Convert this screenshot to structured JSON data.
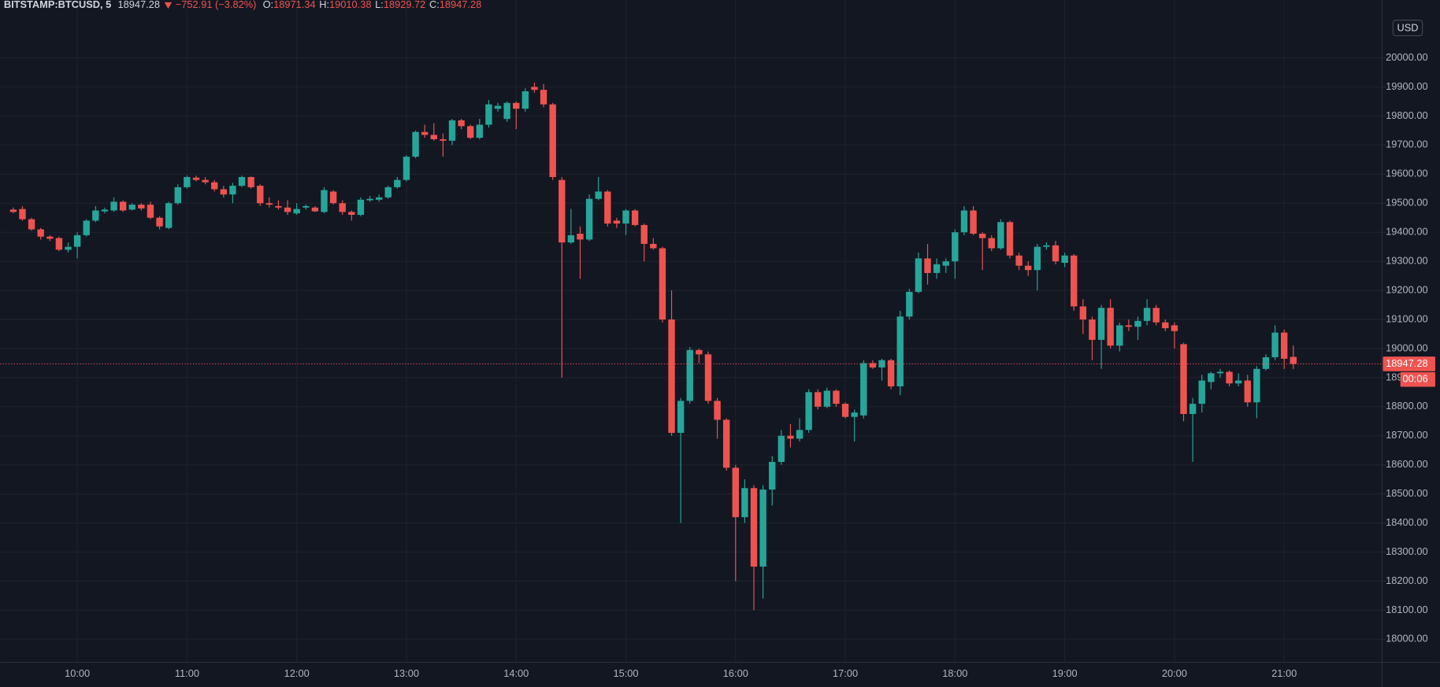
{
  "chart_data": {
    "type": "candlestick",
    "title": "BITSTAMP:BTCUSD, 5",
    "last_price": 18947.28,
    "change": "−752.91 (−3.82%)",
    "ohlc_legend": [
      {
        "label": "O:",
        "value": 18971.34
      },
      {
        "label": "H:",
        "value": 19010.38
      },
      {
        "label": "L:",
        "value": 18929.72
      },
      {
        "label": "C:",
        "value": 18947.28
      }
    ],
    "currency": "USD",
    "countdown": "00:06",
    "up_color": "#26a69a",
    "down_color": "#ef5350",
    "grid": true,
    "x": [
      "09:25",
      "09:30",
      "09:35",
      "09:40",
      "09:45",
      "09:50",
      "09:55",
      "10:00",
      "10:05",
      "10:10",
      "10:15",
      "10:20",
      "10:25",
      "10:30",
      "10:35",
      "10:40",
      "10:45",
      "10:50",
      "10:55",
      "11:00",
      "11:05",
      "11:10",
      "11:15",
      "11:20",
      "11:25",
      "11:30",
      "11:35",
      "11:40",
      "11:45",
      "11:50",
      "11:55",
      "12:00",
      "12:05",
      "12:10",
      "12:15",
      "12:20",
      "12:25",
      "12:30",
      "12:35",
      "12:40",
      "12:45",
      "12:50",
      "12:55",
      "13:00",
      "13:05",
      "13:10",
      "13:15",
      "13:20",
      "13:25",
      "13:30",
      "13:35",
      "13:40",
      "13:45",
      "13:50",
      "13:55",
      "14:00",
      "14:05",
      "14:10",
      "14:15",
      "14:20",
      "14:25",
      "14:30",
      "14:35",
      "14:40",
      "14:45",
      "14:50",
      "14:55",
      "15:00",
      "15:05",
      "15:10",
      "15:15",
      "15:20",
      "15:25",
      "15:30",
      "15:35",
      "15:40",
      "15:45",
      "15:50",
      "15:55",
      "16:00",
      "16:05",
      "16:10",
      "16:15",
      "16:20",
      "16:25",
      "16:30",
      "16:35",
      "16:40",
      "16:45",
      "16:50",
      "16:55",
      "17:00",
      "17:05",
      "17:10",
      "17:15",
      "17:20",
      "17:25",
      "17:30",
      "17:35",
      "17:40",
      "17:45",
      "17:50",
      "17:55",
      "18:00",
      "18:05",
      "18:10",
      "18:15",
      "18:20",
      "18:25",
      "18:30",
      "18:35",
      "18:40",
      "18:45",
      "18:50",
      "18:55",
      "19:00",
      "19:05",
      "19:10",
      "19:15",
      "19:20",
      "19:25",
      "19:30",
      "19:35",
      "19:40",
      "19:45",
      "19:50",
      "19:55",
      "20:00",
      "20:05",
      "20:10",
      "20:15",
      "20:20",
      "20:25",
      "20:30",
      "20:35",
      "20:40",
      "20:45",
      "20:50",
      "20:55",
      "21:00",
      "21:05"
    ],
    "open": [
      19478,
      19480,
      19445,
      19410,
      19385,
      19380,
      19340,
      19350,
      19390,
      19440,
      19472,
      19475,
      19505,
      19478,
      19495,
      19495,
      19450,
      19415,
      19500,
      19555,
      19588,
      19580,
      19572,
      19548,
      19530,
      19560,
      19590,
      19560,
      19500,
      19490,
      19485,
      19465,
      19485,
      19485,
      19470,
      19540,
      19500,
      19470,
      19460,
      19510,
      19512,
      19520,
      19555,
      19580,
      19660,
      19745,
      19735,
      19720,
      19715,
      19785,
      19765,
      19725,
      19770,
      19825,
      19790,
      19845,
      19825,
      19900,
      19890,
      19840,
      19580,
      19365,
      19395,
      19375,
      19515,
      19540,
      19440,
      19430,
      19475,
      19425,
      19360,
      19345,
      19100,
      18710,
      18820,
      18995,
      18980,
      18820,
      18755,
      18590,
      18420,
      18520,
      18250,
      18515,
      18610,
      18700,
      18690,
      18720,
      18850,
      18800,
      18855,
      18810,
      18765,
      18770,
      18950,
      18935,
      18960,
      18870,
      19110,
      19195,
      19310,
      19260,
      19285,
      19300,
      19400,
      19475,
      19395,
      19380,
      19345,
      19435,
      19320,
      19285,
      19270,
      19350,
      19355,
      19295,
      19320,
      19145,
      19100,
      19030,
      19140,
      19010,
      19080,
      19075,
      19095,
      19140,
      19090,
      19080,
      19015,
      18775,
      18810,
      18885,
      18915,
      18920,
      18880,
      18890,
      18815,
      18930,
      18970,
      19055,
      18971.34
    ],
    "high": [
      19485,
      19490,
      19450,
      19415,
      19390,
      19385,
      19365,
      19400,
      19445,
      19490,
      19485,
      19520,
      19510,
      19500,
      19500,
      19505,
      19455,
      19505,
      19565,
      19595,
      19595,
      19590,
      19580,
      19560,
      19570,
      19595,
      19592,
      19565,
      19520,
      19510,
      19510,
      19500,
      19495,
      19490,
      19555,
      19545,
      19510,
      19475,
      19520,
      19525,
      19530,
      19560,
      19590,
      19665,
      19750,
      19770,
      19775,
      19740,
      19790,
      19790,
      19770,
      19790,
      19855,
      19845,
      19850,
      19850,
      19895,
      19915,
      19910,
      19845,
      19590,
      19480,
      19420,
      19530,
      19590,
      19545,
      19450,
      19480,
      19480,
      19430,
      19380,
      19350,
      19200,
      18830,
      19005,
      19000,
      18990,
      18830,
      18760,
      18600,
      18550,
      18530,
      18530,
      18630,
      18720,
      18740,
      18760,
      18860,
      18860,
      18865,
      18860,
      18815,
      18790,
      18960,
      18960,
      18965,
      18965,
      19130,
      19205,
      19330,
      19360,
      19310,
      19310,
      19410,
      19490,
      19490,
      19400,
      19390,
      19445,
      19440,
      19330,
      19300,
      19360,
      19365,
      19370,
      19330,
      19325,
      19170,
      19110,
      19150,
      19170,
      19090,
      19100,
      19110,
      19170,
      19150,
      19100,
      19090,
      19020,
      18830,
      18910,
      18920,
      18930,
      18925,
      18915,
      18910,
      18940,
      18980,
      19080,
      19065,
      19010.38
    ],
    "low": [
      19465,
      19440,
      19405,
      19375,
      19370,
      19335,
      19330,
      19310,
      19385,
      19435,
      19465,
      19470,
      19470,
      19475,
      19475,
      19445,
      19410,
      19410,
      19495,
      19550,
      19575,
      19565,
      19540,
      19520,
      19500,
      19555,
      19550,
      19490,
      19485,
      19478,
      19460,
      19460,
      19478,
      19470,
      19465,
      19495,
      19460,
      19440,
      19455,
      19505,
      19505,
      19515,
      19550,
      19575,
      19655,
      19725,
      19715,
      19660,
      19700,
      19755,
      19720,
      19720,
      19760,
      19815,
      19780,
      19755,
      19815,
      19880,
      19830,
      19580,
      18900,
      19360,
      19240,
      19370,
      19510,
      19420,
      19415,
      19390,
      19420,
      19300,
      19340,
      19090,
      18700,
      18400,
      18810,
      18950,
      18810,
      18690,
      18580,
      18200,
      18400,
      18100,
      18140,
      18460,
      18600,
      18660,
      18680,
      18710,
      18790,
      18795,
      18800,
      18760,
      18680,
      18760,
      18930,
      18890,
      18860,
      18840,
      19100,
      19190,
      19220,
      19240,
      19260,
      19240,
      19390,
      19390,
      19270,
      19335,
      19340,
      19310,
      19270,
      19250,
      19200,
      19340,
      19290,
      19280,
      19130,
      19050,
      18960,
      18930,
      19000,
      18990,
      19060,
      19030,
      19080,
      19080,
      19060,
      19000,
      18750,
      18610,
      18780,
      18860,
      18900,
      18870,
      18870,
      18800,
      18760,
      18925,
      18960,
      18930,
      18929.72
    ],
    "close": [
      19470,
      19445,
      19410,
      19385,
      19378,
      19340,
      19350,
      19390,
      19440,
      19475,
      19478,
      19505,
      19475,
      19495,
      19482,
      19450,
      19420,
      19500,
      19555,
      19590,
      19580,
      19572,
      19548,
      19530,
      19560,
      19590,
      19555,
      19500,
      19495,
      19485,
      19470,
      19480,
      19490,
      19472,
      19545,
      19500,
      19470,
      19460,
      19512,
      19515,
      19520,
      19555,
      19580,
      19660,
      19745,
      19735,
      19720,
      19715,
      19785,
      19765,
      19725,
      19770,
      19840,
      19835,
      19845,
      19825,
      19885,
      19890,
      19840,
      19590,
      19365,
      19390,
      19375,
      19515,
      19540,
      19430,
      19430,
      19475,
      19425,
      19360,
      19345,
      19100,
      18710,
      18820,
      18995,
      18980,
      18820,
      18755,
      18590,
      18420,
      18520,
      18250,
      18515,
      18610,
      18700,
      18690,
      18720,
      18850,
      18800,
      18855,
      18810,
      18765,
      18780,
      18950,
      18935,
      18960,
      18870,
      19110,
      19195,
      19310,
      19260,
      19290,
      19300,
      19400,
      19475,
      19395,
      19380,
      19345,
      19435,
      19320,
      19285,
      19270,
      19350,
      19355,
      19300,
      19320,
      19145,
      19100,
      19030,
      19140,
      19010,
      19080,
      19075,
      19095,
      19140,
      19090,
      19070,
      19060,
      18775,
      18810,
      18890,
      18915,
      18920,
      18880,
      18890,
      18815,
      18930,
      18970,
      19055,
      18965,
      18947.28
    ],
    "ylim": [
      17921,
      20199
    ],
    "yticks": [
      {
        "value": 18000,
        "label": "18000.00"
      },
      {
        "value": 18100,
        "label": "18100.00"
      },
      {
        "value": 18200,
        "label": "18200.00"
      },
      {
        "value": 18300,
        "label": "18300.00"
      },
      {
        "value": 18400,
        "label": "18400.00"
      },
      {
        "value": 18500,
        "label": "18500.00"
      },
      {
        "value": 18600,
        "label": "18600.00"
      },
      {
        "value": 18700,
        "label": "18700.00"
      },
      {
        "value": 18800,
        "label": "18800.00"
      },
      {
        "value": 18900,
        "label": "18900.00"
      },
      {
        "value": 19000,
        "label": "19000.00"
      },
      {
        "value": 19100,
        "label": "19100.00"
      },
      {
        "value": 19200,
        "label": "19200.00"
      },
      {
        "value": 19300,
        "label": "19300.00"
      },
      {
        "value": 19400,
        "label": "19400.00"
      },
      {
        "value": 19500,
        "label": "19500.00"
      },
      {
        "value": 19600,
        "label": "19600.00"
      },
      {
        "value": 19700,
        "label": "19700.00"
      },
      {
        "value": 19800,
        "label": "19800.00"
      },
      {
        "value": 19900,
        "label": "19900.00"
      },
      {
        "value": 20000,
        "label": "20000.00"
      }
    ],
    "xticks": [
      "10:00",
      "11:00",
      "12:00",
      "13:00",
      "14:00",
      "15:00",
      "16:00",
      "17:00",
      "18:00",
      "19:00",
      "20:00",
      "21:00"
    ]
  }
}
